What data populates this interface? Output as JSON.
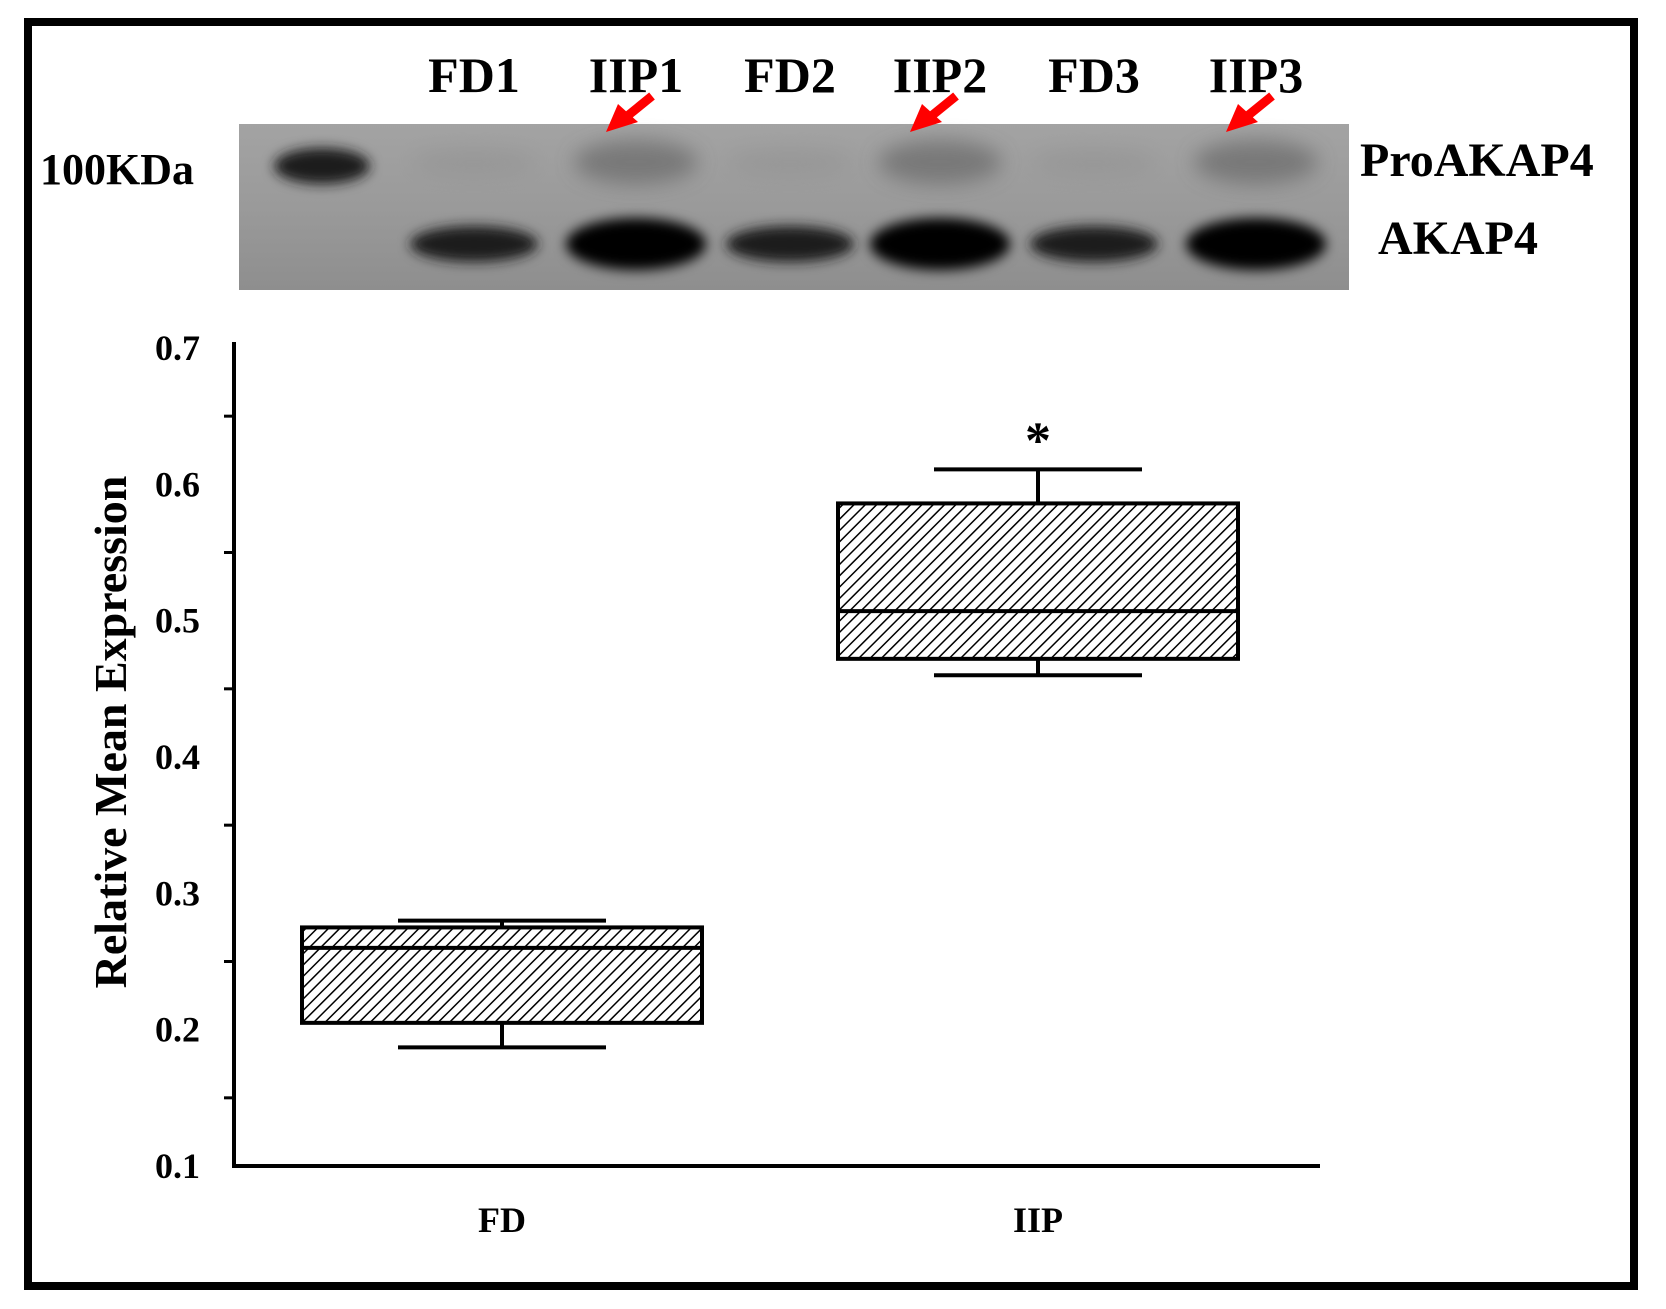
{
  "blot": {
    "lane_labels": [
      "FD1",
      "IIP1",
      "FD2",
      "IIP2",
      "FD3",
      "IIP3"
    ],
    "marker_label": "100KDa",
    "band_labels": {
      "pro": "ProAKAP4",
      "mature": "AKAP4"
    },
    "arrow_lanes": [
      "IIP1",
      "IIP2",
      "IIP3"
    ],
    "arrow_color": "#ff0000"
  },
  "chart_data": {
    "type": "box",
    "categories": [
      "FD",
      "IIP"
    ],
    "ylabel": "Relative Mean Expression",
    "xlabel": "",
    "ylim": [
      0.1,
      0.7
    ],
    "yticks": [
      "0.1",
      "0.2",
      "0.3",
      "0.4",
      "0.5",
      "0.6",
      "0.7"
    ],
    "boxes": [
      {
        "category": "FD",
        "whisker_low": 0.187,
        "q1": 0.205,
        "median": 0.26,
        "q3": 0.275,
        "whisker_high": 0.28
      },
      {
        "category": "IIP",
        "whisker_low": 0.46,
        "q1": 0.472,
        "median": 0.507,
        "q3": 0.586,
        "whisker_high": 0.611
      }
    ],
    "annotations": [
      {
        "category": "IIP",
        "text": "*"
      }
    ],
    "fill": "hatched"
  }
}
